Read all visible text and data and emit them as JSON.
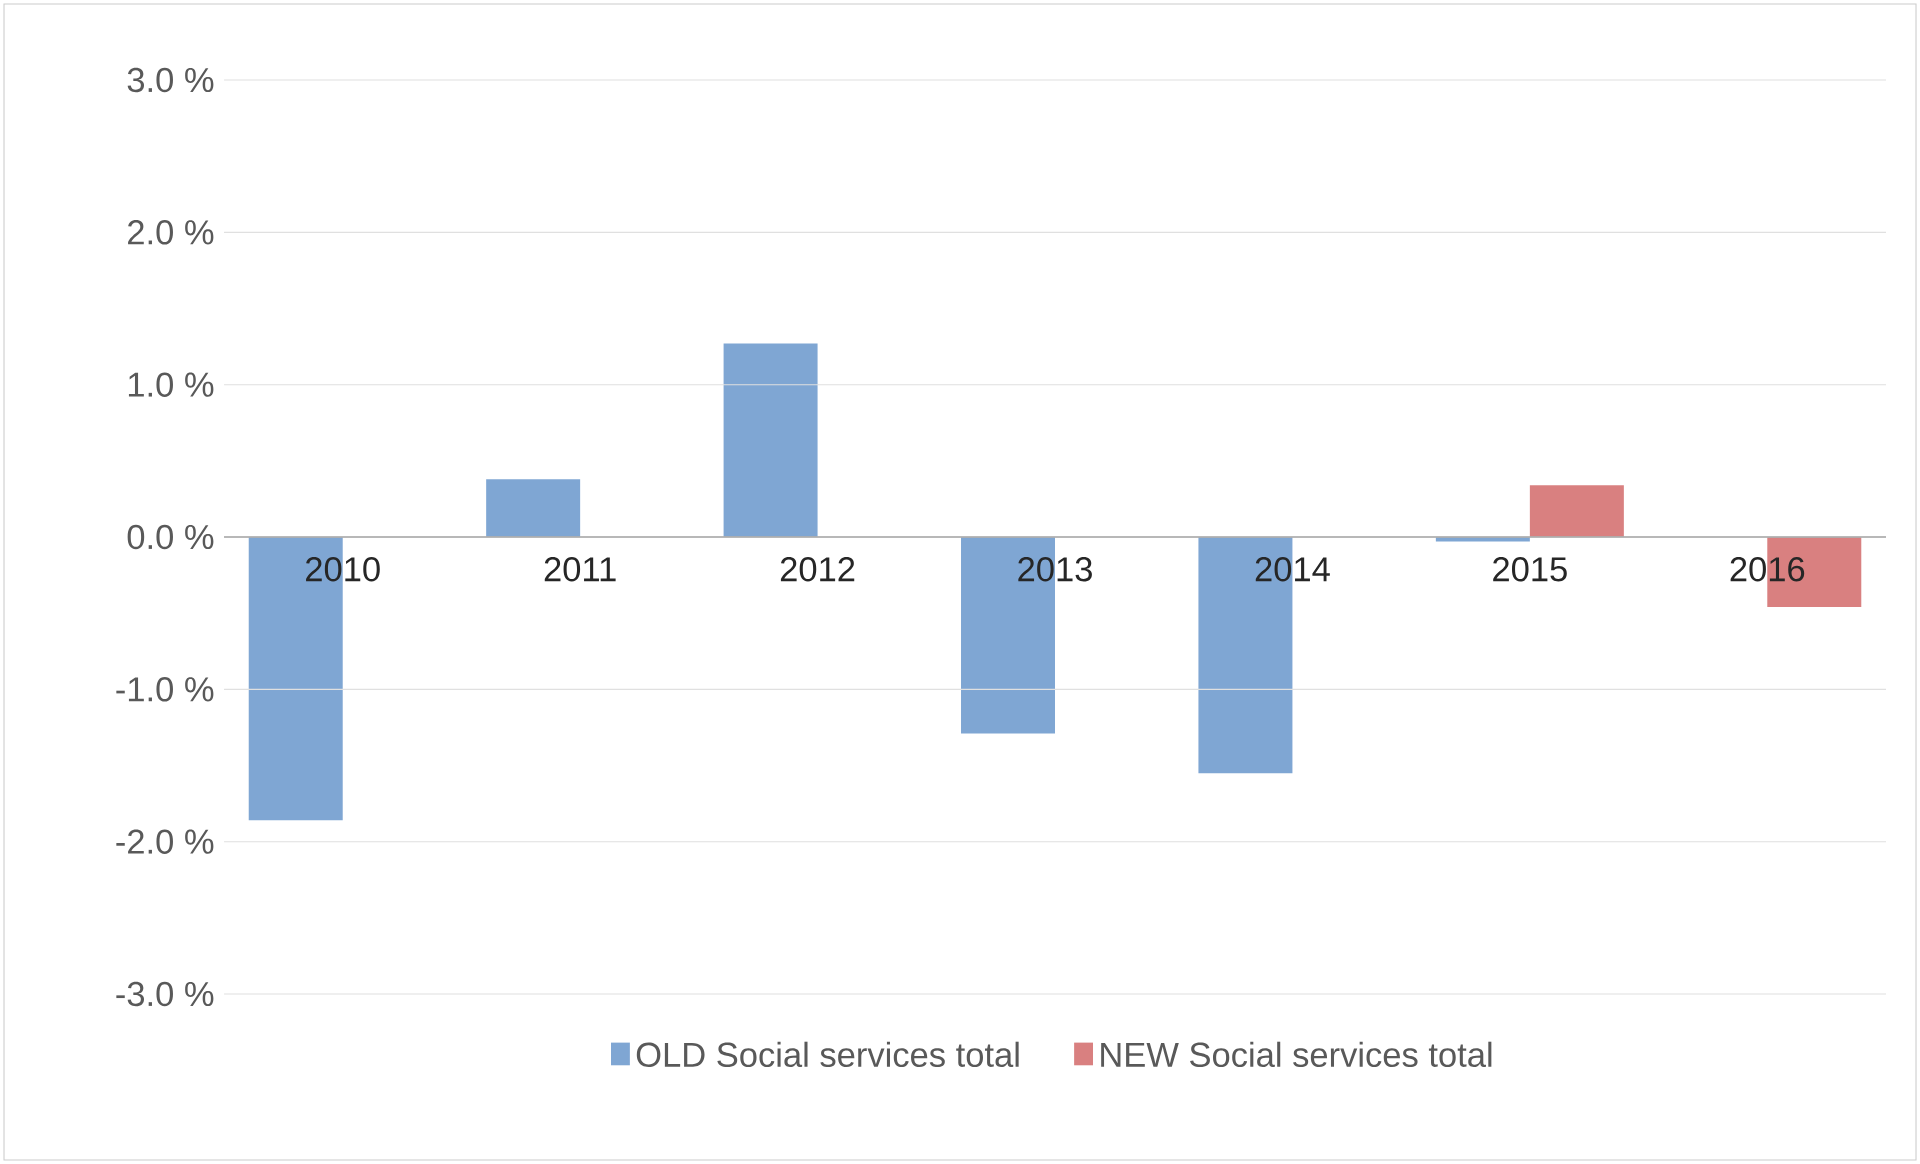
{
  "chart_data": {
    "type": "bar",
    "categories": [
      "2010",
      "2011",
      "2012",
      "2013",
      "2014",
      "2015",
      "2016"
    ],
    "series": [
      {
        "name": "OLD Social services total",
        "color": "#7fa6d3",
        "values": [
          -1.86,
          0.38,
          1.27,
          -1.29,
          -1.55,
          -0.03,
          null
        ]
      },
      {
        "name": "NEW Social services total",
        "color": "#d98080",
        "values": [
          null,
          null,
          null,
          null,
          null,
          0.34,
          -0.46
        ]
      }
    ],
    "ylim": [
      -3,
      3
    ],
    "yticks": [
      {
        "value": 3,
        "label": "3.0 %"
      },
      {
        "value": 2,
        "label": "2.0 %"
      },
      {
        "value": 1,
        "label": "1.0 %"
      },
      {
        "value": 0,
        "label": "0.0 %"
      },
      {
        "value": -1,
        "label": "-1.0 %"
      },
      {
        "value": -2,
        "label": "-2.0 %"
      },
      {
        "value": -3,
        "label": "-3.0 %"
      }
    ],
    "grid": "y",
    "legend": "bottom"
  }
}
